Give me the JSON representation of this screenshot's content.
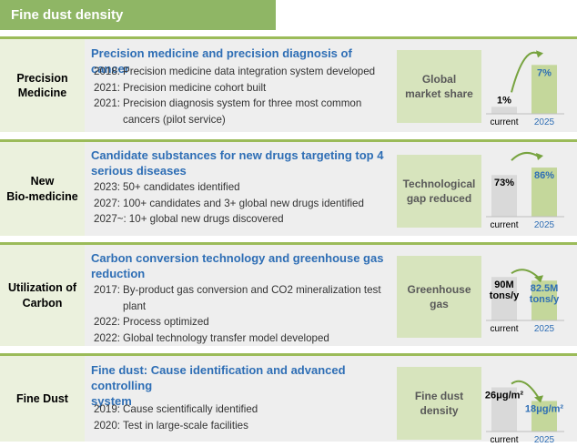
{
  "header": {
    "title": "Fine dust density"
  },
  "colors": {
    "current_bar": "#d9d9d9",
    "target_bar": "#c4d79b",
    "target_text": "#2e6eb5",
    "arrow": "#77a33f"
  },
  "rows": [
    {
      "label_lines": [
        "Precision",
        "Medicine"
      ],
      "title_lines": [
        "Precision medicine and precision diagnosis of cancer"
      ],
      "items": [
        {
          "year": "2018:",
          "text": "Precision medicine data integration system developed"
        },
        {
          "year": "2021:",
          "text": "Precision medicine cohort built"
        },
        {
          "year": "2021:",
          "text": "Precision diagnosis system for three most common cancers (pilot service)"
        }
      ],
      "metric_lines": [
        "Global",
        "market share"
      ]
    },
    {
      "label_lines": [
        "New",
        "Bio-medicine"
      ],
      "title_lines": [
        "Candidate substances for new drugs targeting top 4",
        "serious diseases"
      ],
      "items": [
        {
          "year": "2023:",
          "text": "50+ candidates identified"
        },
        {
          "year": "2027:",
          "text": "100+ candidates and 3+ global new drugs identified"
        },
        {
          "year": "2027~:",
          "text": "10+ global new drugs discovered"
        }
      ],
      "metric_lines": [
        "Technological",
        "gap reduced"
      ]
    },
    {
      "label_lines": [
        "Utilization of",
        "Carbon"
      ],
      "title_lines": [
        "Carbon conversion technology and greenhouse gas",
        "reduction"
      ],
      "items": [
        {
          "year": "2017:",
          "text": "By-product gas conversion and CO2 mineralization test plant"
        },
        {
          "year": "2022:",
          "text": "Process optimized"
        },
        {
          "year": "2022:",
          "text": "Global technology transfer model developed"
        }
      ],
      "metric_lines": [
        "Greenhouse",
        "gas"
      ]
    },
    {
      "label_lines": [
        "Fine Dust"
      ],
      "title_lines": [
        "Fine dust: Cause identification and advanced controlling",
        "system"
      ],
      "items": [
        {
          "year": "2019:",
          "text": "Cause scientifically identified"
        },
        {
          "year": "2020:",
          "text": "Test in large-scale facilities"
        }
      ],
      "metric_lines": [
        "Fine dust",
        "density"
      ]
    }
  ],
  "chart_data": [
    {
      "type": "bar",
      "categories": [
        "current",
        "2025"
      ],
      "values": [
        1,
        7
      ],
      "value_labels": [
        [
          "1%"
        ],
        [
          "7%"
        ]
      ],
      "unit": "%",
      "ylim": [
        0,
        9
      ]
    },
    {
      "type": "bar",
      "categories": [
        "current",
        "2025"
      ],
      "values": [
        73,
        86
      ],
      "value_labels": [
        [
          "73%"
        ],
        [
          "86%"
        ]
      ],
      "unit": "%",
      "ylim": [
        0,
        110
      ]
    },
    {
      "type": "bar",
      "categories": [
        "current",
        "2025"
      ],
      "values": [
        90,
        82.5
      ],
      "value_labels": [
        [
          "90M",
          "tons/y"
        ],
        [
          "82.5M",
          "tons/y"
        ]
      ],
      "unit": "M tons/y",
      "ylim": [
        0,
        130
      ]
    },
    {
      "type": "bar",
      "categories": [
        "current",
        "2025"
      ],
      "values": [
        26,
        18
      ],
      "value_labels": [
        [
          "26μg/m²"
        ],
        [
          "18μg/m²"
        ]
      ],
      "unit": "μg/m²",
      "ylim": [
        0,
        37
      ]
    }
  ]
}
